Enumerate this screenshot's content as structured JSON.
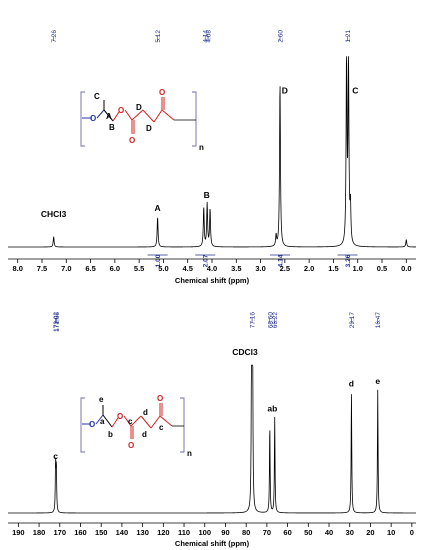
{
  "chart_data": [
    {
      "type": "line",
      "title": "",
      "xlabel": "Chemical shift (ppm)",
      "ylabel": "",
      "xlim": [
        8.2,
        -0.2
      ],
      "x_ticks": [
        "8.0",
        "7.5",
        "7.0",
        "6.5",
        "6.0",
        "5.5",
        "5.0",
        "4.5",
        "4.0",
        "3.5",
        "3.0",
        "2.5",
        "2.0",
        "1.5",
        "1.0",
        "0.5",
        "0.0"
      ],
      "peak_labels": [
        "7.26",
        "5.12",
        "4.14",
        "4.08",
        "2.60",
        "1.21"
      ],
      "integrals": [
        {
          "x": 5.12,
          "label": "1.00"
        },
        {
          "x": 4.14,
          "label": "2.07"
        },
        {
          "x": 2.6,
          "label": "4.14"
        },
        {
          "x": 1.21,
          "label": "3.26"
        }
      ],
      "assignments": [
        {
          "x": 7.26,
          "label": "CHCl3"
        },
        {
          "x": 5.12,
          "label": "A"
        },
        {
          "x": 4.11,
          "label": "B"
        },
        {
          "x": 2.5,
          "label": "D"
        },
        {
          "x": 1.05,
          "label": "C"
        }
      ],
      "peaks": [
        {
          "x": 7.26,
          "height": 0.055
        },
        {
          "x": 5.12,
          "height": 0.16
        },
        {
          "x": 4.17,
          "height": 0.21
        },
        {
          "x": 4.1,
          "height": 0.23
        },
        {
          "x": 4.04,
          "height": 0.2
        },
        {
          "x": 2.68,
          "height": 0.06
        },
        {
          "x": 2.6,
          "height": 0.88
        },
        {
          "x": 1.23,
          "height": 1.0
        },
        {
          "x": 1.19,
          "height": 0.98
        },
        {
          "x": 1.15,
          "height": 0.2
        },
        {
          "x": 0.0,
          "height": 0.04
        }
      ],
      "structure_labels": {
        "methyl": "C",
        "ch": "A",
        "ch2": "B",
        "d1": "D",
        "d2": "D",
        "o": "O",
        "n": "n"
      }
    },
    {
      "type": "line",
      "title": "",
      "xlabel": "Chemical shift (ppm)",
      "ylabel": "",
      "xlim": [
        195,
        -2
      ],
      "x_ticks": [
        "190",
        "180",
        "170",
        "160",
        "150",
        "140",
        "130",
        "120",
        "110",
        "100",
        "90",
        "80",
        "70",
        "60",
        "50",
        "40",
        "30",
        "20",
        "10",
        "0"
      ],
      "peak_labels": [
        "172.02",
        "171.66",
        "77.16",
        "68.60",
        "66.22",
        "29.17",
        "16.47"
      ],
      "solvent_label": "CDCl3",
      "assignments": [
        {
          "x": 172.0,
          "label": "c"
        },
        {
          "x": 68.6,
          "label": "a"
        },
        {
          "x": 66.2,
          "label": "b"
        },
        {
          "x": 29.2,
          "label": "d"
        },
        {
          "x": 16.5,
          "label": "e"
        }
      ],
      "peaks": [
        {
          "x": 172.02,
          "height": 0.33
        },
        {
          "x": 171.66,
          "height": 0.31
        },
        {
          "x": 77.4,
          "height": 1.0
        },
        {
          "x": 77.16,
          "height": 1.0
        },
        {
          "x": 76.9,
          "height": 0.98
        },
        {
          "x": 68.6,
          "height": 0.61
        },
        {
          "x": 66.22,
          "height": 0.66
        },
        {
          "x": 29.17,
          "height": 0.83
        },
        {
          "x": 16.47,
          "height": 0.85
        }
      ],
      "structure_labels": {
        "methyl": "e",
        "ch": "a",
        "ch2": "b",
        "c1": "c",
        "c2": "c",
        "d1": "d",
        "d2": "d",
        "o": "O",
        "n": "n"
      }
    }
  ]
}
